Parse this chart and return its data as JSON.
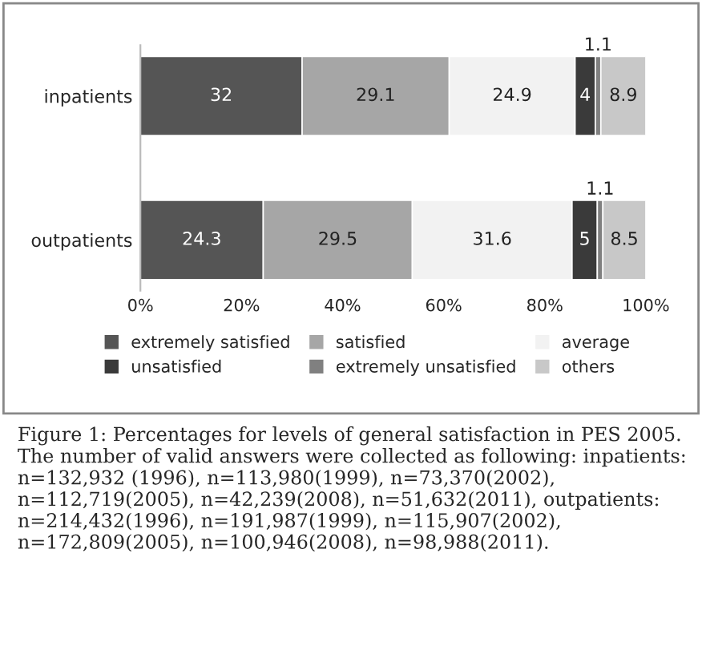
{
  "chart_data": {
    "type": "bar",
    "orientation": "horizontal",
    "stacked": true,
    "data_labels": true,
    "categories": [
      "inpatients",
      "outpatients"
    ],
    "series": [
      {
        "name": "extremely satisfied",
        "color": "#555555",
        "values": [
          32,
          24.3
        ]
      },
      {
        "name": "satisfied",
        "color": "#a6a6a6",
        "values": [
          29.1,
          29.5
        ]
      },
      {
        "name": "average",
        "color": "#f2f2f2",
        "values": [
          24.9,
          31.6
        ]
      },
      {
        "name": "unsatisfied",
        "color": "#3a3a3a",
        "values": [
          4,
          5
        ]
      },
      {
        "name": "extremely unsatisfied",
        "color": "#808080",
        "values": [
          1.1,
          1.1
        ]
      },
      {
        "name": "others",
        "color": "#c8c8c8",
        "values": [
          8.9,
          8.5
        ]
      }
    ],
    "xlim": [
      0,
      100
    ],
    "xticks": [
      {
        "value": 0,
        "label": "0%"
      },
      {
        "value": 20,
        "label": "20%"
      },
      {
        "value": 40,
        "label": "40%"
      },
      {
        "value": 60,
        "label": "60%"
      },
      {
        "value": 80,
        "label": "80%"
      },
      {
        "value": 100,
        "label": "100%"
      }
    ],
    "legend": "bottom",
    "grid": false,
    "annotations": [
      "Figure 1: Percentages for levels of general satisfaction in PES 2005. The number of valid answers were collected as following: inpatients: n=132,932 (1996), n=113,980(1999), n=73,370(2002), n=112,719(2005), n=42,239(2008), n=51,632(2011), outpatients: n=214,432(1996), n=191,987(1999), n=115,907(2002), n=172,809(2005), n=100,946(2008), n=98,988(2011)."
    ]
  }
}
